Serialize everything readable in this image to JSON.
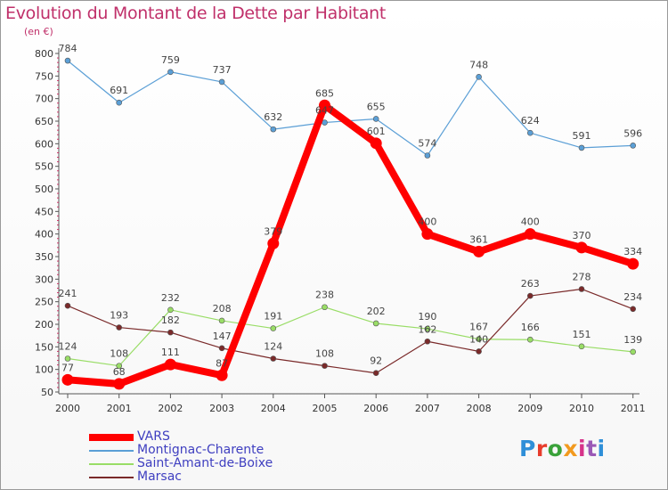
{
  "chart_data": {
    "type": "line",
    "title": "Evolution du Montant de la Dette par Habitant",
    "subtitle": "(en €)",
    "x": [
      "2000",
      "2001",
      "2002",
      "2003",
      "2004",
      "2005",
      "2006",
      "2007",
      "2008",
      "2009",
      "2010",
      "2011"
    ],
    "ylim": [
      50,
      800
    ],
    "yticks": [
      50,
      100,
      150,
      200,
      250,
      300,
      350,
      400,
      450,
      500,
      550,
      600,
      650,
      700,
      750,
      800
    ],
    "grid": false,
    "legend_position": "bottom-left",
    "series": [
      {
        "name": "VARS",
        "color": "#ff0000",
        "values": [
          77,
          68,
          111,
          87,
          379,
          685,
          601,
          400,
          361,
          400,
          370,
          334
        ]
      },
      {
        "name": "Montignac-Charente",
        "color": "#5b9fd6",
        "values": [
          784,
          691,
          759,
          737,
          632,
          647,
          655,
          574,
          748,
          624,
          591,
          596
        ]
      },
      {
        "name": "Saint-Amant-de-Boixe",
        "color": "#99dd66",
        "values": [
          124,
          108,
          232,
          208,
          191,
          238,
          202,
          190,
          167,
          166,
          151,
          139
        ]
      },
      {
        "name": "Marsac",
        "color": "#7a2a2a",
        "values": [
          241,
          193,
          182,
          147,
          124,
          108,
          92,
          162,
          140,
          263,
          278,
          234
        ]
      }
    ]
  },
  "logo": {
    "text": "Proxiti"
  }
}
